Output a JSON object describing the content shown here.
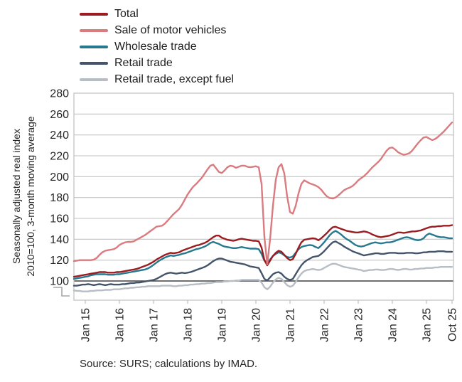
{
  "legend": {
    "items": [
      {
        "label": "Total",
        "color": "#9b1c20"
      },
      {
        "label": "Sale of motor vehicles",
        "color": "#d97b7f"
      },
      {
        "label": "Wholesale trade",
        "color": "#27798f"
      },
      {
        "label": "Retail trade",
        "color": "#44546a"
      },
      {
        "label": "Retail trade, except fuel",
        "color": "#b6bdc5"
      }
    ]
  },
  "y_axis": {
    "title_line1": "Seasonally adjusted real index",
    "title_line2": "2010=100, 3-month moving average",
    "tick_labels": [
      280,
      260,
      240,
      220,
      200,
      180,
      160,
      140,
      120,
      100
    ],
    "has_axis_break": true,
    "baseline_value": 100
  },
  "x_axis": {
    "tick_labels": [
      "Jan 15",
      "Jan 16",
      "Jan 17",
      "Jan 18",
      "Jan 19",
      "Jan 20",
      "Jan 21",
      "Jan 22",
      "Jan 23",
      "Jan 24",
      "Jan 25",
      "Oct 25"
    ]
  },
  "source": "Source: SURS; calculations by IMAD.",
  "colors": {
    "grid": "#c2c2c2",
    "border": "#bfbfbf",
    "baseline": "#404040",
    "tick_text": "#262626",
    "axis_break": "#a6a6a6"
  },
  "chart_data": {
    "type": "line",
    "title": "",
    "xlabel": "",
    "ylabel": "Seasonally adjusted real index, 2010=100, 3-month moving average",
    "x_start": "2014-09",
    "x_end": "2025-10",
    "frequency": "monthly",
    "ylim_displayed": [
      100,
      280
    ],
    "y_axis_break_below": 100,
    "grid": "horizontal",
    "legend_position": "top-left",
    "x_tick_month_indices": [
      4,
      16,
      28,
      40,
      52,
      64,
      76,
      88,
      100,
      112,
      124,
      133
    ],
    "x_tick_labels": [
      "Jan 15",
      "Jan 16",
      "Jan 17",
      "Jan 18",
      "Jan 19",
      "Jan 20",
      "Jan 21",
      "Jan 22",
      "Jan 23",
      "Jan 24",
      "Jan 25",
      "Oct 25"
    ],
    "series": [
      {
        "name": "Retail trade, except fuel",
        "color": "#b6bdc5",
        "values": [
          91,
          90.5,
          90.5,
          90,
          90,
          90,
          90.5,
          90.5,
          91,
          91,
          91,
          91.5,
          91.5,
          91.5,
          92,
          92,
          92,
          92.5,
          93,
          93,
          93.5,
          93.5,
          94,
          94,
          94.5,
          94.5,
          95,
          95,
          95,
          95,
          95,
          95.5,
          95.5,
          95.5,
          95.5,
          95,
          95,
          95.5,
          95.5,
          96,
          96,
          96.5,
          96.5,
          97,
          97,
          97.5,
          97.5,
          98,
          98,
          98.5,
          99,
          99,
          99,
          99.5,
          99.5,
          100,
          100,
          100.5,
          100.5,
          101,
          101,
          101,
          101,
          101,
          101,
          101,
          98.5,
          94,
          92,
          94.5,
          98.5,
          101.5,
          103,
          102,
          99,
          96,
          94.5,
          95.5,
          99,
          103.5,
          107,
          109.5,
          110.5,
          111,
          111.5,
          111,
          110.5,
          111,
          112.5,
          114,
          115.5,
          116.5,
          116.5,
          115.5,
          114.5,
          113.5,
          113,
          112.5,
          112,
          111.5,
          111,
          110.5,
          109.5,
          110,
          110.5,
          110.5,
          111,
          111,
          110.5,
          110.5,
          111,
          111.5,
          111.5,
          111,
          110.5,
          111,
          111.5,
          111.5,
          111,
          111,
          111.5,
          111.5,
          112,
          112,
          112.5,
          112.5,
          112.5,
          113,
          113,
          113.5,
          113.5,
          113.5,
          113.5,
          113.5
        ]
      },
      {
        "name": "Retail trade",
        "color": "#44546a",
        "values": [
          95.5,
          95.5,
          96,
          96.5,
          96.5,
          97,
          96.5,
          96,
          96.5,
          97,
          96.5,
          96,
          96.5,
          97,
          96.5,
          96.5,
          96.5,
          97,
          97,
          97.5,
          98,
          98,
          98.5,
          98.5,
          99,
          99.5,
          100,
          100.5,
          101,
          102,
          103.5,
          105,
          106.5,
          107.5,
          108,
          107.5,
          107,
          107.5,
          108,
          107.5,
          108,
          108.5,
          109.5,
          110.5,
          111.5,
          112.5,
          113.5,
          115,
          117,
          119,
          120.5,
          121.5,
          121.5,
          120.5,
          119.5,
          118.5,
          118,
          117.5,
          117,
          116.5,
          116,
          115,
          114,
          113.5,
          113,
          112.5,
          107.5,
          102,
          100.5,
          103.5,
          106.5,
          108,
          108.5,
          107,
          104,
          102,
          101,
          102,
          106.5,
          111,
          115,
          118,
          120,
          121.5,
          123,
          123.5,
          124,
          126,
          128.5,
          131.5,
          134.5,
          137,
          138,
          136.5,
          135,
          133,
          131.5,
          130,
          128.5,
          127.5,
          126.5,
          125.5,
          124.5,
          125,
          125.5,
          126,
          126.5,
          126.5,
          126,
          126,
          126.5,
          127,
          127,
          127,
          126.5,
          126.5,
          126.5,
          127,
          127,
          127,
          126.5,
          126.5,
          127,
          127.5,
          127.5,
          128,
          128,
          128,
          128.5,
          128.5,
          128.5,
          128,
          128,
          128
        ]
      },
      {
        "name": "Wholesale trade",
        "color": "#27798f",
        "values": [
          102,
          102.5,
          103,
          103.5,
          104,
          104.5,
          105.5,
          106,
          106.5,
          106.5,
          106.5,
          106.5,
          106,
          106,
          106,
          106.5,
          106.5,
          107,
          107.5,
          108,
          108.5,
          109,
          109.5,
          110,
          110.5,
          111,
          112,
          113.5,
          115.5,
          117.5,
          119.5,
          121,
          122.5,
          123.5,
          124.5,
          124,
          124.5,
          125,
          126,
          126.5,
          127.5,
          128.5,
          129.5,
          130.5,
          131,
          132,
          133,
          134.5,
          136.5,
          137.5,
          136.5,
          135.5,
          134,
          133,
          132.5,
          132,
          131.5,
          131.5,
          132,
          132.5,
          132,
          131.5,
          131,
          131,
          131,
          130.5,
          126,
          119.5,
          117.5,
          120.5,
          124,
          126,
          127.5,
          126.5,
          124.5,
          123,
          122.5,
          123.5,
          127,
          130.5,
          132.5,
          133.5,
          134,
          134.5,
          134,
          132.5,
          131.5,
          134,
          137,
          140.5,
          144,
          146.5,
          148,
          146.5,
          144.5,
          142,
          140,
          138.5,
          136.5,
          134.5,
          133.5,
          133,
          133.5,
          134.5,
          135.5,
          136.5,
          137,
          136.5,
          136,
          136.5,
          137,
          137,
          137.5,
          138.5,
          139.5,
          140.5,
          141.5,
          142,
          141.5,
          140.5,
          139.5,
          139,
          139.5,
          141,
          144,
          145.5,
          144.5,
          143.5,
          142.5,
          142,
          142,
          141.5,
          141,
          141
        ]
      },
      {
        "name": "Total",
        "color": "#9b1c20",
        "values": [
          104,
          104.5,
          105,
          105.5,
          106,
          106.5,
          107,
          107.5,
          108,
          108.5,
          108.5,
          108.5,
          108,
          108,
          108,
          108.5,
          108.5,
          109,
          109.5,
          110,
          110.5,
          111,
          111.5,
          112.5,
          113.5,
          114.5,
          115.5,
          117,
          118.5,
          120.5,
          122,
          123.5,
          125,
          126,
          127,
          126.5,
          127,
          127.5,
          129,
          130,
          131,
          132,
          133,
          134,
          134.5,
          135.5,
          136.5,
          138,
          140,
          142,
          143.5,
          143.5,
          141.5,
          140.5,
          139.5,
          139,
          138.5,
          139,
          140,
          140.5,
          140,
          139.5,
          139,
          138.5,
          138.5,
          138,
          132,
          120,
          115,
          119.5,
          124,
          127,
          129,
          128,
          125,
          122,
          120,
          121,
          126,
          132,
          137,
          139.5,
          140,
          140.5,
          141,
          140.5,
          139,
          141,
          143.5,
          146,
          149,
          151.5,
          152,
          151,
          150,
          149,
          148,
          147.5,
          147,
          146.5,
          146.5,
          147,
          147.5,
          147,
          146,
          144.5,
          143.5,
          142.5,
          142,
          142.5,
          143,
          143.5,
          144.5,
          145.5,
          146.5,
          146.5,
          146,
          146.5,
          147,
          147.5,
          147.5,
          148,
          148.5,
          149.5,
          150.5,
          151.5,
          152,
          152,
          152.5,
          152.5,
          153,
          153,
          153,
          153.5
        ]
      },
      {
        "name": "Sale of motor vehicles",
        "color": "#d97b7f",
        "values": [
          119,
          119.5,
          120,
          120,
          120,
          120,
          120,
          120.5,
          122,
          125,
          127.5,
          129,
          129.5,
          130,
          130.5,
          132,
          134.5,
          136,
          137,
          137.5,
          137.5,
          138,
          139.5,
          141,
          142.5,
          144,
          146,
          148,
          150,
          152,
          152.5,
          153,
          155,
          158,
          161,
          164,
          166.5,
          169,
          173,
          178,
          183,
          187,
          190.5,
          193,
          196,
          199,
          203,
          207,
          210.5,
          211.5,
          208,
          204.5,
          203.5,
          206,
          209,
          210.5,
          210,
          208.5,
          209.5,
          210.5,
          210.5,
          209.5,
          209,
          209.5,
          210,
          209,
          193,
          142,
          116,
          140,
          172,
          197,
          209,
          212,
          203,
          181,
          166,
          164.5,
          172,
          184,
          193,
          196.5,
          195,
          193.5,
          192.5,
          191.5,
          190,
          187.5,
          184,
          181,
          179.5,
          179,
          180,
          182,
          184.5,
          187,
          188.5,
          189.5,
          191,
          193.5,
          196.5,
          198.5,
          200.5,
          203,
          206,
          209,
          211.5,
          214,
          217,
          221,
          225,
          227.5,
          228,
          226,
          223.5,
          222,
          221,
          221.5,
          222.5,
          225,
          228.5,
          232,
          235,
          237.5,
          238,
          236.5,
          235,
          236,
          238,
          240.5,
          243,
          246,
          249,
          252
        ]
      }
    ]
  }
}
